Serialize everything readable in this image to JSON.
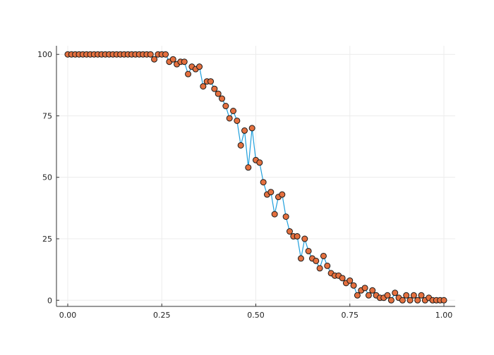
{
  "chart_data": {
    "type": "line",
    "title": "",
    "xlabel": "",
    "ylabel": "",
    "xlim": [
      -0.03,
      1.03
    ],
    "ylim": [
      -2.5,
      103.5
    ],
    "grid": true,
    "legend": "none",
    "x_ticks": [
      {
        "value": 0.0,
        "label": "0.00"
      },
      {
        "value": 0.25,
        "label": "0.25"
      },
      {
        "value": 0.5,
        "label": "0.50"
      },
      {
        "value": 0.75,
        "label": "0.75"
      },
      {
        "value": 1.0,
        "label": "1.00"
      }
    ],
    "y_ticks": [
      {
        "value": 0,
        "label": "0"
      },
      {
        "value": 25,
        "label": "25"
      },
      {
        "value": 50,
        "label": "50"
      },
      {
        "value": 75,
        "label": "75"
      },
      {
        "value": 100,
        "label": "100"
      }
    ],
    "colors": {
      "line": "#1f9fdc",
      "marker_fill": "#e4703f",
      "marker_stroke": "#1a1a1a",
      "grid": "#ececec",
      "axis": "#333333"
    },
    "x": [
      0.0,
      0.01,
      0.02,
      0.03,
      0.04,
      0.05,
      0.06,
      0.07,
      0.08,
      0.09,
      0.1,
      0.11,
      0.12,
      0.13,
      0.14,
      0.15,
      0.16,
      0.17,
      0.18,
      0.19,
      0.2,
      0.21,
      0.22,
      0.23,
      0.24,
      0.25,
      0.26,
      0.27,
      0.28,
      0.29,
      0.3,
      0.31,
      0.32,
      0.33,
      0.34,
      0.35,
      0.36,
      0.37,
      0.38,
      0.39,
      0.4,
      0.41,
      0.42,
      0.43,
      0.44,
      0.45,
      0.46,
      0.47,
      0.48,
      0.49,
      0.5,
      0.51,
      0.52,
      0.53,
      0.54,
      0.55,
      0.56,
      0.57,
      0.58,
      0.59,
      0.6,
      0.61,
      0.62,
      0.63,
      0.64,
      0.65,
      0.66,
      0.67,
      0.68,
      0.69,
      0.7,
      0.71,
      0.72,
      0.73,
      0.74,
      0.75,
      0.76,
      0.77,
      0.78,
      0.79,
      0.8,
      0.81,
      0.82,
      0.83,
      0.84,
      0.85,
      0.86,
      0.87,
      0.88,
      0.89,
      0.9,
      0.91,
      0.92,
      0.93,
      0.94,
      0.95,
      0.96,
      0.97,
      0.98,
      0.99,
      1.0
    ],
    "series": [
      {
        "values": [
          100,
          100,
          100,
          100,
          100,
          100,
          100,
          100,
          100,
          100,
          100,
          100,
          100,
          100,
          100,
          100,
          100,
          100,
          100,
          100,
          100,
          100,
          100,
          98,
          100,
          100,
          100,
          97,
          98,
          96,
          97,
          97,
          92,
          95,
          94,
          95,
          87,
          89,
          89,
          86,
          84,
          82,
          79,
          74,
          77,
          73,
          63,
          69,
          54,
          70,
          57,
          56,
          48,
          43,
          44,
          35,
          42,
          43,
          34,
          28,
          26,
          26,
          17,
          25,
          20,
          17,
          16,
          13,
          18,
          14,
          11,
          10,
          10,
          9,
          7,
          8,
          6,
          2,
          4,
          5,
          2,
          4,
          2,
          1,
          1,
          2,
          0,
          3,
          1,
          0,
          2,
          0,
          2,
          0,
          2,
          0,
          1,
          0,
          0,
          0,
          0
        ]
      }
    ]
  }
}
